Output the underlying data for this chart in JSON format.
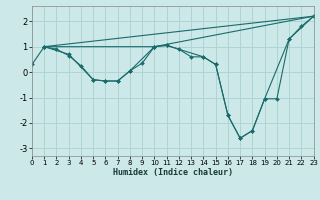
{
  "xlabel": "Humidex (Indice chaleur)",
  "xlim": [
    0,
    23
  ],
  "ylim": [
    -3.3,
    2.6
  ],
  "xticks": [
    0,
    1,
    2,
    3,
    4,
    5,
    6,
    7,
    8,
    9,
    10,
    11,
    12,
    13,
    14,
    15,
    16,
    17,
    18,
    19,
    20,
    21,
    22,
    23
  ],
  "yticks": [
    -3,
    -2,
    -1,
    0,
    1,
    2
  ],
  "bg_color": "#cce8e8",
  "line_color": "#1a6b6b",
  "grid_color": "#afd4d4",
  "series": [
    {
      "x": [
        1,
        23
      ],
      "y": [
        1.0,
        2.2
      ]
    },
    {
      "x": [
        1,
        10,
        23
      ],
      "y": [
        1.0,
        1.0,
        2.2
      ]
    },
    {
      "x": [
        1,
        3,
        5,
        6,
        7,
        8,
        10,
        11,
        14,
        15,
        16,
        17,
        18,
        19,
        21,
        23
      ],
      "y": [
        1.0,
        0.7,
        -0.3,
        -0.35,
        -0.35,
        0.05,
        1.0,
        1.05,
        0.6,
        0.3,
        -1.7,
        -2.6,
        -2.3,
        -1.05,
        1.3,
        2.2
      ]
    },
    {
      "x": [
        0,
        1,
        2,
        3,
        4,
        5,
        6,
        7,
        8,
        9,
        10,
        11,
        12,
        13,
        14,
        15,
        16,
        17,
        18,
        19,
        20,
        21,
        22,
        23
      ],
      "y": [
        0.3,
        1.0,
        0.9,
        0.65,
        0.25,
        -0.3,
        -0.35,
        -0.35,
        0.05,
        0.35,
        1.0,
        1.05,
        0.9,
        0.6,
        0.6,
        0.3,
        -1.7,
        -2.6,
        -2.3,
        -1.05,
        -1.05,
        1.3,
        1.8,
        2.2
      ]
    }
  ]
}
